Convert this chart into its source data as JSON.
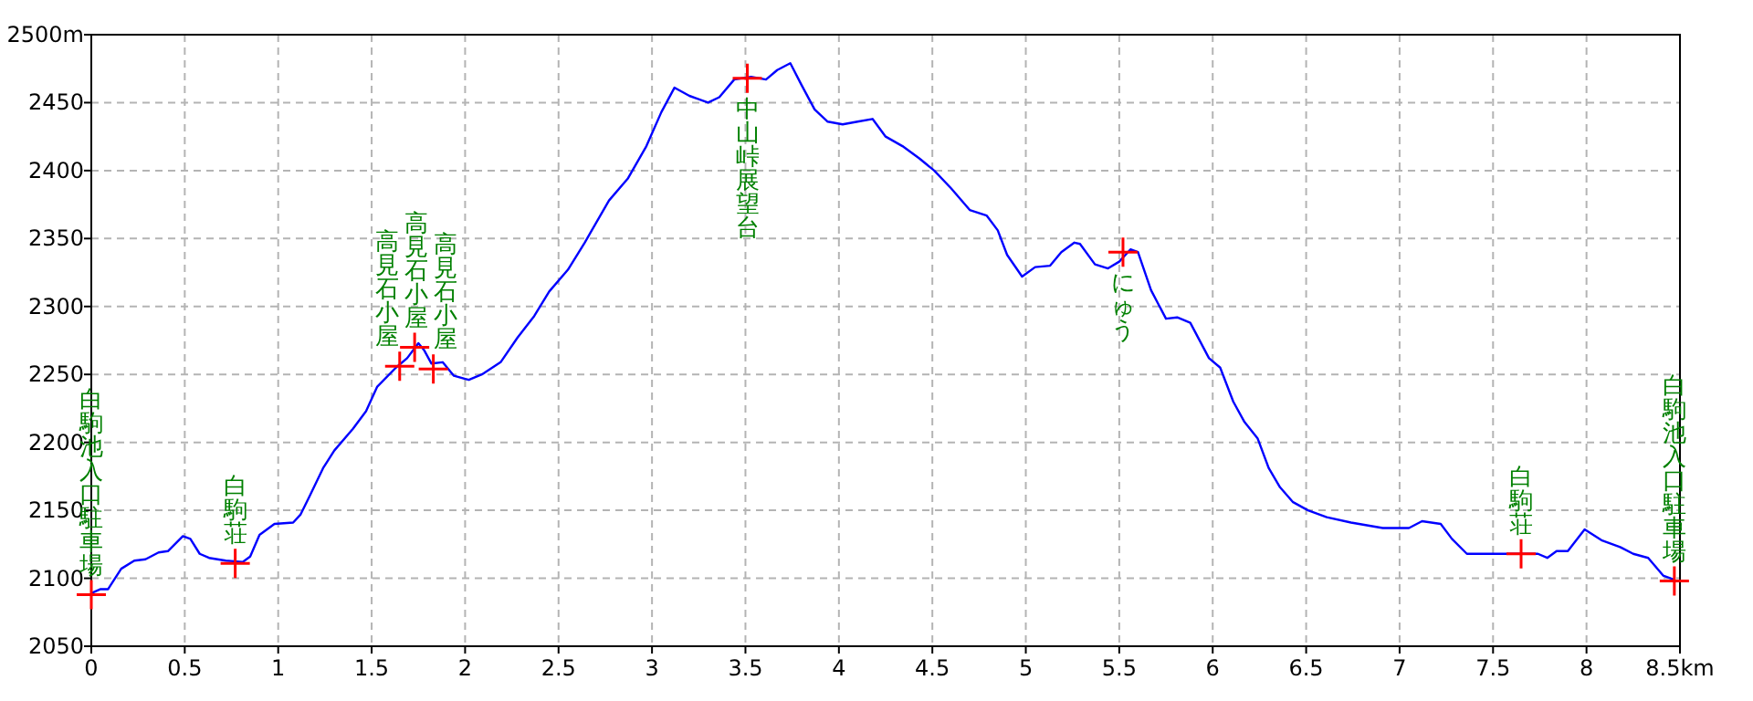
{
  "chart_data": {
    "type": "line",
    "xlim": [
      0,
      8.5
    ],
    "ylim": [
      2050,
      2500
    ],
    "xticks": [
      0,
      0.5,
      1,
      1.5,
      2,
      2.5,
      3,
      3.5,
      4,
      4.5,
      5,
      5.5,
      6,
      6.5,
      7,
      7.5,
      8,
      {
        "value": 8.5,
        "label": "8.5km"
      }
    ],
    "yticks": [
      2050,
      2100,
      2150,
      2200,
      2250,
      2300,
      2350,
      2400,
      2450,
      {
        "value": 2500,
        "label": "2500m"
      }
    ],
    "grid": true,
    "line_style": "solid",
    "series": [
      {
        "color": "#0000ff",
        "marker": "none",
        "x": [
          0,
          0.05,
          0.09,
          0.16,
          0.23,
          0.29,
          0.36,
          0.41,
          0.49,
          0.53,
          0.58,
          0.63,
          0.72,
          0.81,
          0.85,
          0.9,
          0.98,
          1.08,
          1.12,
          1.17,
          1.24,
          1.3,
          1.4,
          1.47,
          1.53,
          1.63,
          1.69,
          1.75,
          1.78,
          1.82,
          1.88,
          1.94,
          2.02,
          2.09,
          2.19,
          2.28,
          2.37,
          2.45,
          2.55,
          2.64,
          2.77,
          2.87,
          2.97,
          3.05,
          3.12,
          3.2,
          3.3,
          3.36,
          3.44,
          3.53,
          3.61,
          3.67,
          3.74,
          3.8,
          3.87,
          3.94,
          4.02,
          4.1,
          4.18,
          4.25,
          4.34,
          4.43,
          4.51,
          4.6,
          4.7,
          4.79,
          4.85,
          4.9,
          4.98,
          5.05,
          5.13,
          5.19,
          5.26,
          5.29,
          5.37,
          5.44,
          5.5,
          5.56,
          5.6,
          5.67,
          5.75,
          5.81,
          5.88,
          5.98,
          6.04,
          6.11,
          6.17,
          6.24,
          6.3,
          6.36,
          6.43,
          6.51,
          6.61,
          6.74,
          6.91,
          7.05,
          7.12,
          7.22,
          7.28,
          7.36,
          7.59,
          7.74,
          7.79,
          7.84,
          7.9,
          7.99,
          8.08,
          8.18,
          8.25,
          8.33,
          8.41,
          8.47
        ],
        "values": [
          2089,
          2092,
          2092,
          2107,
          2113,
          2114,
          2119,
          2120,
          2131,
          2129,
          2118,
          2115,
          2113,
          2112,
          2116,
          2132,
          2140,
          2141,
          2147,
          2161,
          2181,
          2194,
          2210,
          2223,
          2241,
          2255,
          2262,
          2273,
          2268,
          2258,
          2259,
          2249,
          2246,
          2250,
          2259,
          2277,
          2293,
          2311,
          2327,
          2347,
          2378,
          2394,
          2418,
          2443,
          2461,
          2455,
          2450,
          2454,
          2467,
          2469,
          2467,
          2474,
          2479,
          2463,
          2445,
          2436,
          2434,
          2436,
          2438,
          2425,
          2418,
          2409,
          2400,
          2387,
          2371,
          2367,
          2356,
          2338,
          2322,
          2329,
          2330,
          2340,
          2347,
          2346,
          2331,
          2328,
          2333,
          2342,
          2340,
          2312,
          2291,
          2292,
          2288,
          2262,
          2255,
          2230,
          2215,
          2203,
          2181,
          2167,
          2156,
          2150,
          2145,
          2141,
          2137,
          2137,
          2142,
          2140,
          2129,
          2118,
          2118,
          2118,
          2115,
          2120,
          2120,
          2136,
          2128,
          2123,
          2118,
          2115,
          2102,
          2099
        ]
      },
      {
        "type": "scatter",
        "color": "#ff0000",
        "marker": "cross",
        "x": [
          0,
          0.77,
          1.65,
          1.73,
          1.83,
          3.51,
          5.52,
          7.65,
          8.47
        ],
        "values": [
          2088,
          2111,
          2256,
          2270,
          2254,
          2468,
          2340,
          2118,
          2098
        ]
      }
    ],
    "annotations": [
      {
        "text": "白駒池入口駐車場",
        "x": 0,
        "y": 2088
      },
      {
        "text": "白駒荘",
        "x": 0.77,
        "y": 2111
      },
      {
        "text": "高見石小屋",
        "x": 1.65,
        "y": 2256
      },
      {
        "text": "高見石小屋",
        "x": 1.73,
        "y": 2270
      },
      {
        "text": "高見石小屋",
        "x": 1.83,
        "y": 2254
      },
      {
        "text": "中山峠展望台",
        "x": 3.51,
        "y": 2468
      },
      {
        "text": "にゅう",
        "x": 5.52,
        "y": 2340
      },
      {
        "text": "白駒荘",
        "x": 7.65,
        "y": 2118
      },
      {
        "text": "白駒池入口駐車場",
        "x": 8.47,
        "y": 2098
      }
    ]
  }
}
